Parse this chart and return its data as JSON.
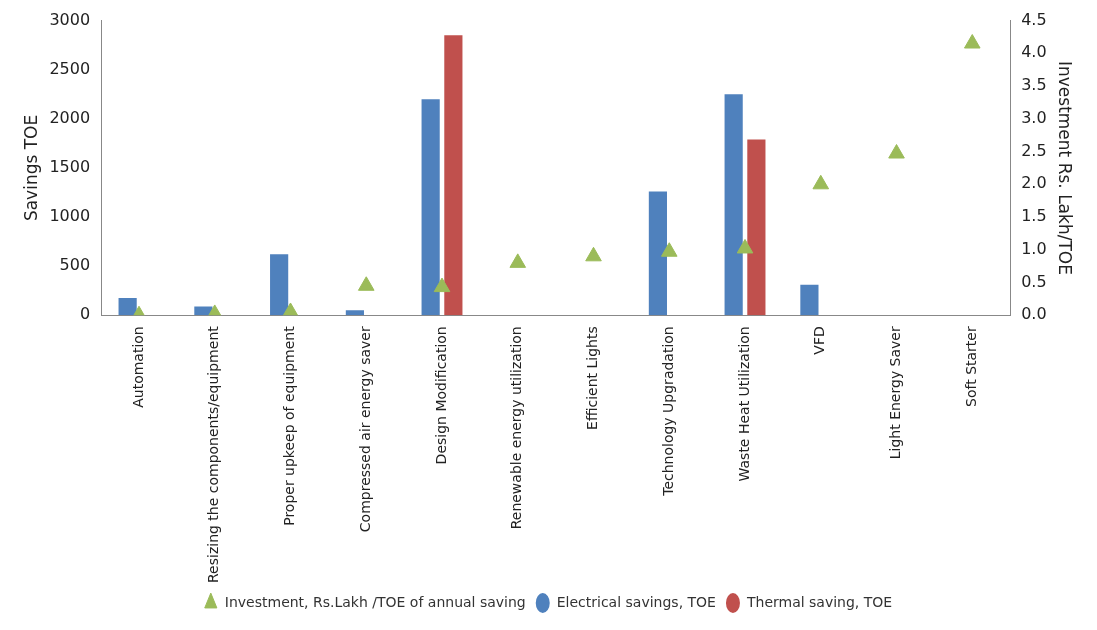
{
  "chart_data": {
    "type": "bar",
    "ylabel": "Savings TOE",
    "y2label": "Investment Rs. Lakh/TOE",
    "categories": [
      "Automation",
      "Resizing the components/equipment",
      "Proper upkeep of equipment",
      "Compressed air energy saver",
      "Design Modification",
      "Renewable energy utilization",
      "Efficient Lights",
      "Technology Upgradation",
      "Waste Heat Utilization",
      "VFD",
      "Light Energy Saver",
      "Soft Starter"
    ],
    "series": [
      {
        "name": "Electrical savings, TOE",
        "color": "#4f81bd",
        "values": [
          175,
          90,
          620,
          50,
          2200,
          null,
          null,
          1260,
          2250,
          310,
          null,
          null
        ]
      },
      {
        "name": "Thermal saving, TOE",
        "color": "#c0504d",
        "values": [
          null,
          null,
          null,
          null,
          2850,
          null,
          null,
          null,
          1790,
          null,
          null,
          null
        ]
      },
      {
        "name": "Investment, Rs.Lakh /TOE of annual saving",
        "type": "scatter",
        "axis": "y2",
        "color": "#9bbb59",
        "values": [
          0.0,
          0.02,
          0.05,
          0.45,
          0.43,
          0.8,
          0.9,
          0.97,
          1.02,
          2.0,
          2.47,
          4.15
        ]
      }
    ],
    "ylim": [
      0,
      3000
    ],
    "yticks": [
      0,
      500,
      1000,
      1500,
      2000,
      2500,
      3000
    ],
    "y2lim": [
      0,
      4.5
    ],
    "y2ticks": [
      {
        "value": 0,
        "label": "0.0"
      },
      {
        "value": 0.5,
        "label": "0.5"
      },
      {
        "value": 1,
        "label": "1.0"
      },
      {
        "value": 1.5,
        "label": "1.5"
      },
      {
        "value": 2,
        "label": "2.0"
      },
      {
        "value": 2.5,
        "label": "2.5"
      },
      {
        "value": 3,
        "label": "3.0"
      },
      {
        "value": 3.5,
        "label": "3.5"
      },
      {
        "value": 4,
        "label": "4.0"
      },
      {
        "value": 4.5,
        "label": "4.5"
      }
    ],
    "marker": "triangle",
    "legend": "bottom",
    "grid": false
  }
}
